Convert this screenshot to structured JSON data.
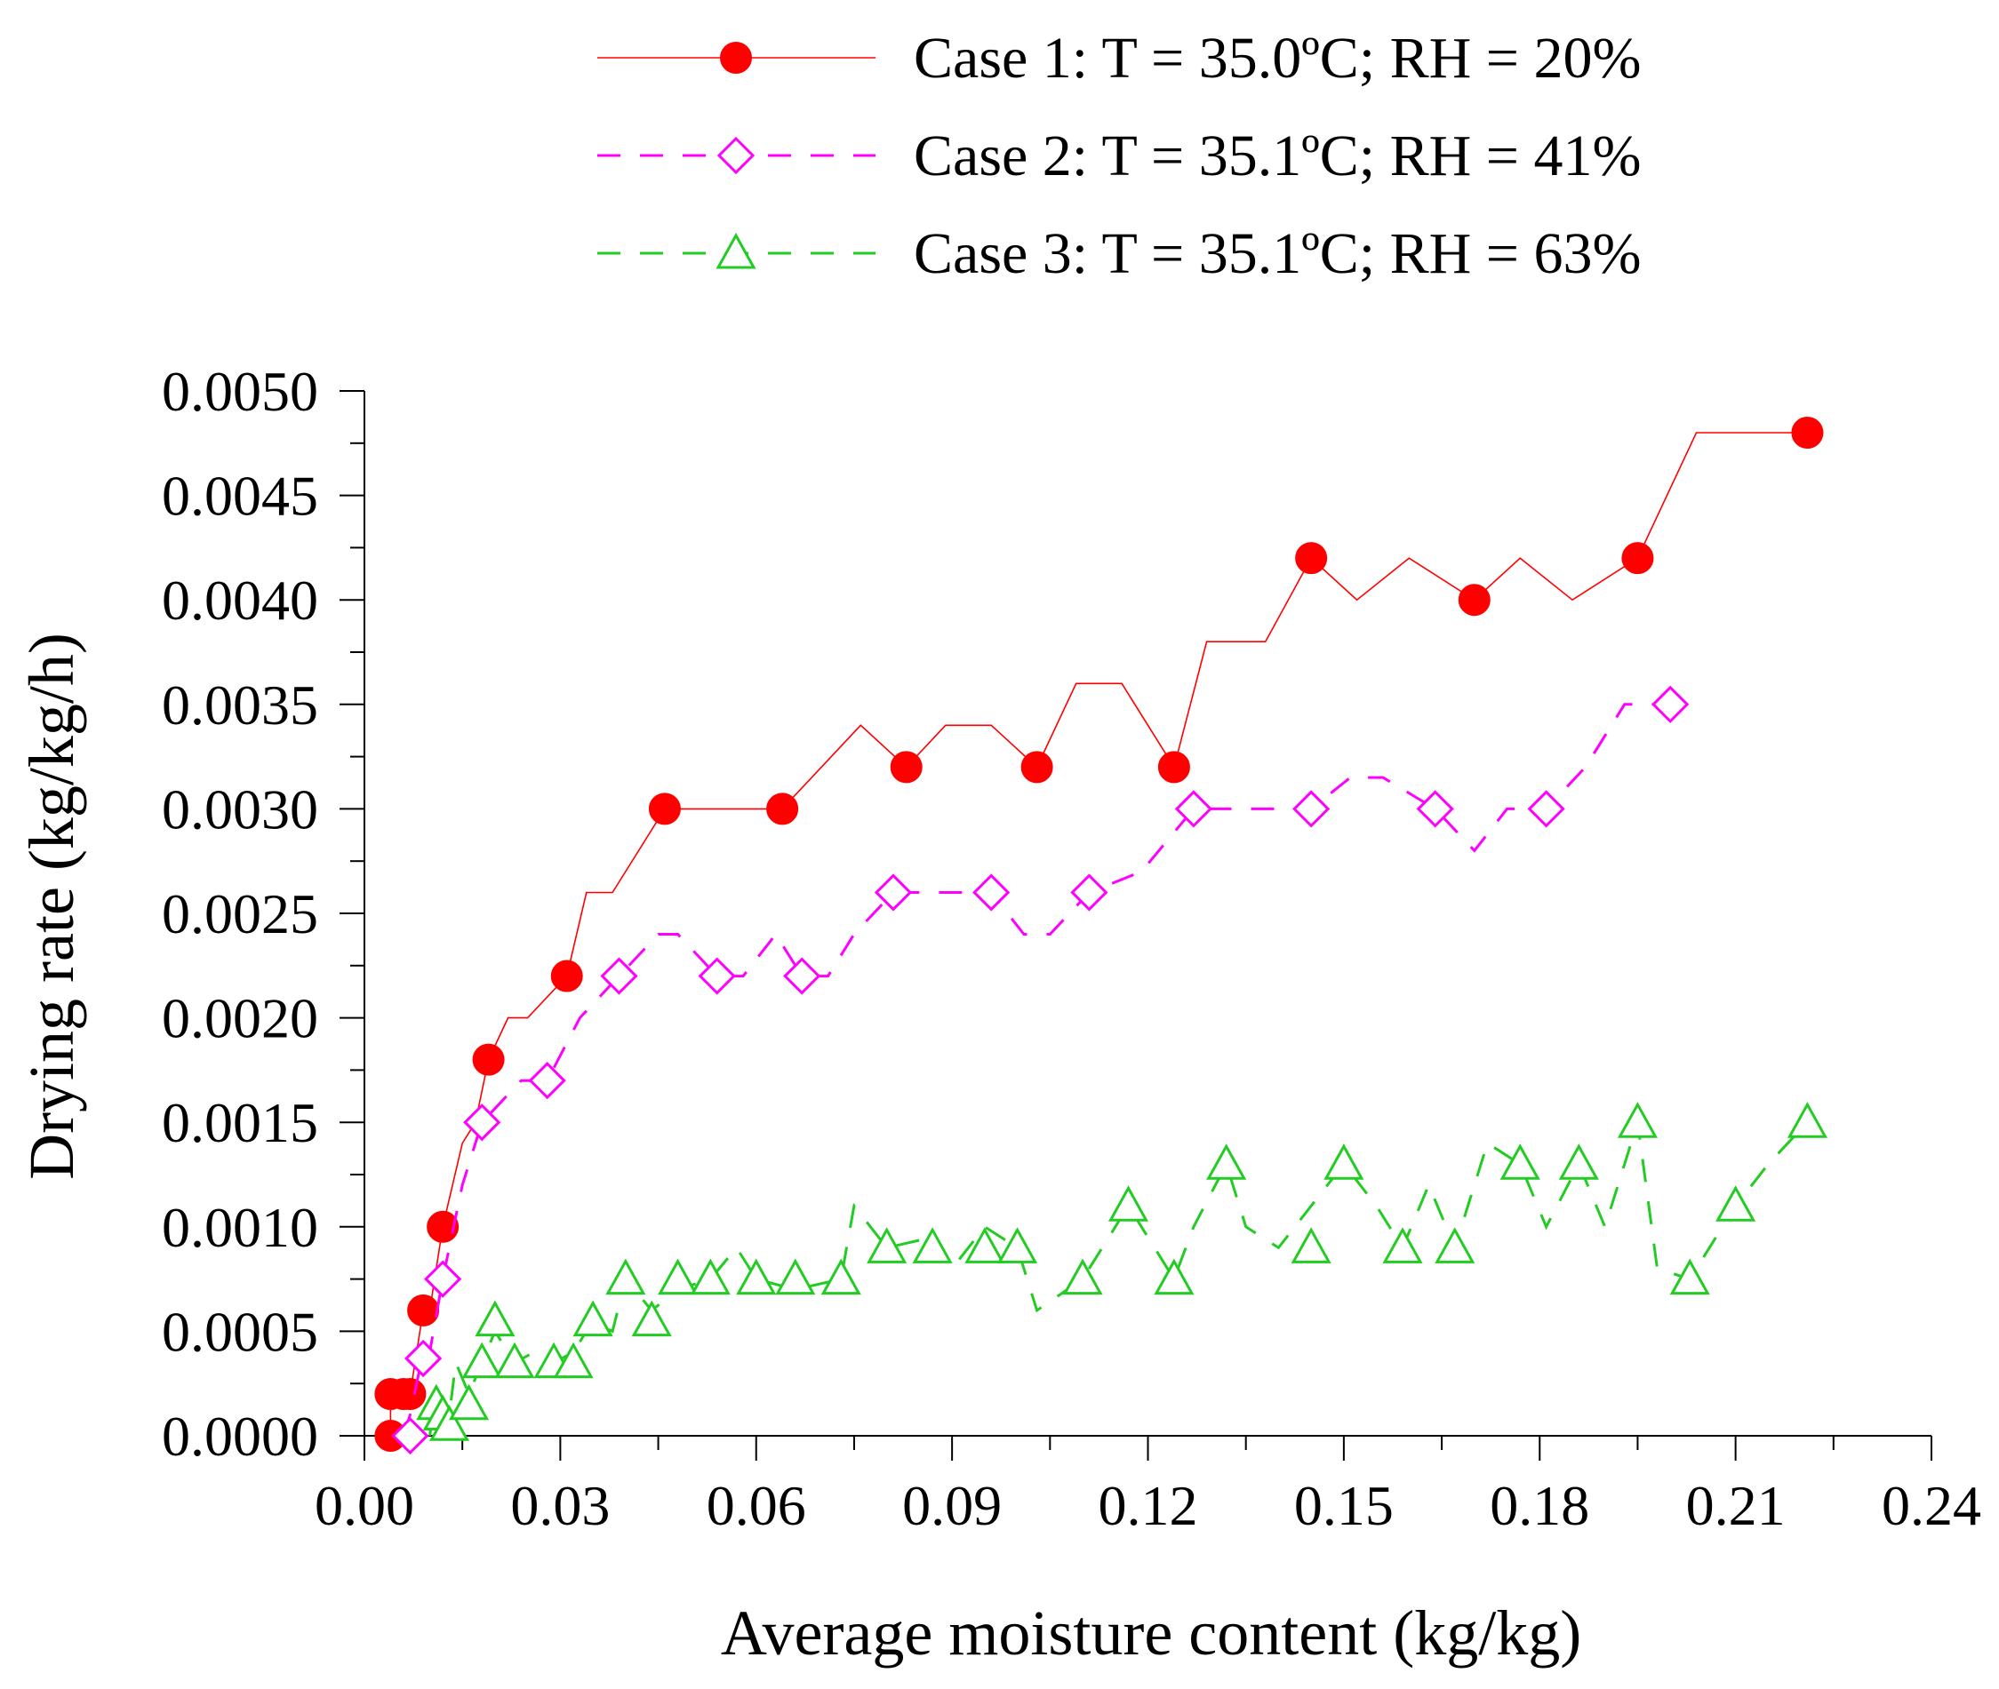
{
  "chart_data": {
    "type": "line",
    "title": "",
    "xlabel": "Average moisture content (kg/kg)",
    "ylabel": "Drying rate (kg/kg/h)",
    "xlim": [
      0.0,
      0.24
    ],
    "ylim": [
      0.0,
      0.005
    ],
    "x_ticks": [
      "0.00",
      "0.03",
      "0.06",
      "0.09",
      "0.12",
      "0.15",
      "0.18",
      "0.21",
      "0.24"
    ],
    "y_ticks": [
      "0.0000",
      "0.0005",
      "0.0010",
      "0.0015",
      "0.0020",
      "0.0025",
      "0.0030",
      "0.0035",
      "0.0040",
      "0.0045",
      "0.0050"
    ],
    "legend_position": "top-right (above plot)",
    "series": [
      {
        "name": "Case 1: T = 35.0ºC; RH = 20%",
        "color": "#ff0000",
        "marker": "filled-circle",
        "line": "solid",
        "points": [
          [
            0.004,
            0.0
          ],
          [
            0.004,
            0.0002
          ],
          [
            0.006,
            0.0002
          ],
          [
            0.007,
            0.0002
          ],
          [
            0.009,
            0.0006
          ],
          [
            0.01,
            0.0006
          ],
          [
            0.012,
            0.001
          ],
          [
            0.015,
            0.0014
          ],
          [
            0.017,
            0.0015
          ],
          [
            0.019,
            0.0018
          ],
          [
            0.022,
            0.002
          ],
          [
            0.025,
            0.002
          ],
          [
            0.031,
            0.0022
          ],
          [
            0.034,
            0.0026
          ],
          [
            0.038,
            0.0026
          ],
          [
            0.046,
            0.003
          ],
          [
            0.064,
            0.003
          ],
          [
            0.076,
            0.0034
          ],
          [
            0.083,
            0.0032
          ],
          [
            0.089,
            0.0034
          ],
          [
            0.096,
            0.0034
          ],
          [
            0.103,
            0.0032
          ],
          [
            0.109,
            0.0036
          ],
          [
            0.116,
            0.0036
          ],
          [
            0.124,
            0.0032
          ],
          [
            0.129,
            0.0038
          ],
          [
            0.138,
            0.0038
          ],
          [
            0.145,
            0.0042
          ],
          [
            0.152,
            0.004
          ],
          [
            0.16,
            0.0042
          ],
          [
            0.17,
            0.004
          ],
          [
            0.177,
            0.0042
          ],
          [
            0.185,
            0.004
          ],
          [
            0.195,
            0.0042
          ],
          [
            0.204,
            0.0048
          ],
          [
            0.221,
            0.0048
          ]
        ],
        "markers": [
          [
            0.004,
            0.0
          ],
          [
            0.004,
            0.0002
          ],
          [
            0.006,
            0.0002
          ],
          [
            0.007,
            0.0002
          ],
          [
            0.009,
            0.0006
          ],
          [
            0.012,
            0.001
          ],
          [
            0.019,
            0.0018
          ],
          [
            0.031,
            0.0022
          ],
          [
            0.046,
            0.003
          ],
          [
            0.064,
            0.003
          ],
          [
            0.083,
            0.0032
          ],
          [
            0.103,
            0.0032
          ],
          [
            0.124,
            0.0032
          ],
          [
            0.145,
            0.0042
          ],
          [
            0.17,
            0.004
          ],
          [
            0.195,
            0.0042
          ],
          [
            0.221,
            0.0048
          ]
        ]
      },
      {
        "name": "Case 2: T = 35.1ºC; RH = 41%",
        "color": "#ff00ff",
        "marker": "open-diamond",
        "line": "dashed",
        "points": [
          [
            0.006,
            0.0
          ],
          [
            0.007,
            0.0001
          ],
          [
            0.009,
            0.0004
          ],
          [
            0.01,
            0.0004
          ],
          [
            0.012,
            0.00075
          ],
          [
            0.015,
            0.0012
          ],
          [
            0.018,
            0.0015
          ],
          [
            0.021,
            0.0016
          ],
          [
            0.024,
            0.0017
          ],
          [
            0.028,
            0.0017
          ],
          [
            0.033,
            0.002
          ],
          [
            0.039,
            0.0022
          ],
          [
            0.045,
            0.0024
          ],
          [
            0.048,
            0.0024
          ],
          [
            0.054,
            0.0022
          ],
          [
            0.058,
            0.0022
          ],
          [
            0.063,
            0.0024
          ],
          [
            0.067,
            0.0022
          ],
          [
            0.071,
            0.0022
          ],
          [
            0.075,
            0.0024
          ],
          [
            0.081,
            0.0026
          ],
          [
            0.096,
            0.0026
          ],
          [
            0.101,
            0.0024
          ],
          [
            0.105,
            0.0024
          ],
          [
            0.111,
            0.0026
          ],
          [
            0.119,
            0.0027
          ],
          [
            0.127,
            0.003
          ],
          [
            0.145,
            0.003
          ],
          [
            0.151,
            0.00315
          ],
          [
            0.156,
            0.00315
          ],
          [
            0.164,
            0.003
          ],
          [
            0.17,
            0.0028
          ],
          [
            0.175,
            0.003
          ],
          [
            0.181,
            0.003
          ],
          [
            0.187,
            0.0032
          ],
          [
            0.193,
            0.0035
          ],
          [
            0.2,
            0.0035
          ]
        ],
        "markers": [
          [
            0.007,
            0.0
          ],
          [
            0.009,
            0.00037
          ],
          [
            0.012,
            0.00075
          ],
          [
            0.018,
            0.0015
          ],
          [
            0.028,
            0.0017
          ],
          [
            0.039,
            0.0022
          ],
          [
            0.054,
            0.0022
          ],
          [
            0.067,
            0.0022
          ],
          [
            0.081,
            0.0026
          ],
          [
            0.096,
            0.0026
          ],
          [
            0.111,
            0.0026
          ],
          [
            0.127,
            0.003
          ],
          [
            0.145,
            0.003
          ],
          [
            0.164,
            0.003
          ],
          [
            0.181,
            0.003
          ],
          [
            0.2,
            0.0035
          ]
        ]
      },
      {
        "name": "Case 3: T = 35.1ºC; RH = 63%",
        "color": "#22cc22",
        "marker": "open-triangle",
        "line": "dashed",
        "points": [
          [
            0.01,
            0.0
          ],
          [
            0.011,
            0.0002
          ],
          [
            0.012,
            0.0001
          ],
          [
            0.013,
            0.0001
          ],
          [
            0.014,
            0.00035
          ],
          [
            0.016,
            0.0002
          ],
          [
            0.018,
            0.00035
          ],
          [
            0.02,
            0.0005
          ],
          [
            0.023,
            0.00035
          ],
          [
            0.026,
            0.0004
          ],
          [
            0.029,
            0.00035
          ],
          [
            0.032,
            0.0004
          ],
          [
            0.035,
            0.00055
          ],
          [
            0.038,
            0.0005
          ],
          [
            0.04,
            0.00075
          ],
          [
            0.044,
            0.0006
          ],
          [
            0.048,
            0.0007
          ],
          [
            0.053,
            0.00075
          ],
          [
            0.057,
            0.0009
          ],
          [
            0.06,
            0.00075
          ],
          [
            0.066,
            0.0007
          ],
          [
            0.073,
            0.00075
          ],
          [
            0.075,
            0.0011
          ],
          [
            0.08,
            0.0009
          ],
          [
            0.087,
            0.00095
          ],
          [
            0.09,
            0.0008
          ],
          [
            0.095,
            0.001
          ],
          [
            0.1,
            0.0009
          ],
          [
            0.103,
            0.0006
          ],
          [
            0.11,
            0.00075
          ],
          [
            0.113,
            0.0009
          ],
          [
            0.117,
            0.0011
          ],
          [
            0.124,
            0.00075
          ],
          [
            0.127,
            0.001
          ],
          [
            0.132,
            0.0013
          ],
          [
            0.135,
            0.001
          ],
          [
            0.14,
            0.0009
          ],
          [
            0.145,
            0.0011
          ],
          [
            0.15,
            0.0013
          ],
          [
            0.155,
            0.0011
          ],
          [
            0.159,
            0.0009
          ],
          [
            0.163,
            0.0012
          ],
          [
            0.167,
            0.0009
          ],
          [
            0.172,
            0.0014
          ],
          [
            0.177,
            0.0013
          ],
          [
            0.181,
            0.001
          ],
          [
            0.186,
            0.0013
          ],
          [
            0.19,
            0.001
          ],
          [
            0.195,
            0.0015
          ],
          [
            0.198,
            0.0008
          ],
          [
            0.203,
            0.00075
          ],
          [
            0.206,
            0.0009
          ],
          [
            0.21,
            0.0011
          ],
          [
            0.215,
            0.0013
          ],
          [
            0.221,
            0.0015
          ]
        ],
        "markers": [
          [
            0.011,
            0.00015
          ],
          [
            0.012,
            0.0001
          ],
          [
            0.013,
            5e-05
          ],
          [
            0.016,
            0.00015
          ],
          [
            0.018,
            0.00035
          ],
          [
            0.02,
            0.00055
          ],
          [
            0.023,
            0.00035
          ],
          [
            0.029,
            0.00035
          ],
          [
            0.032,
            0.00035
          ],
          [
            0.035,
            0.00055
          ],
          [
            0.04,
            0.00075
          ],
          [
            0.044,
            0.00055
          ],
          [
            0.048,
            0.00075
          ],
          [
            0.053,
            0.00075
          ],
          [
            0.06,
            0.00075
          ],
          [
            0.066,
            0.00075
          ],
          [
            0.073,
            0.00075
          ],
          [
            0.08,
            0.0009
          ],
          [
            0.087,
            0.0009
          ],
          [
            0.095,
            0.0009
          ],
          [
            0.1,
            0.0009
          ],
          [
            0.11,
            0.00075
          ],
          [
            0.117,
            0.0011
          ],
          [
            0.124,
            0.00075
          ],
          [
            0.132,
            0.0013
          ],
          [
            0.145,
            0.0009
          ],
          [
            0.15,
            0.0013
          ],
          [
            0.159,
            0.0009
          ],
          [
            0.167,
            0.0009
          ],
          [
            0.177,
            0.0013
          ],
          [
            0.186,
            0.0013
          ],
          [
            0.195,
            0.0015
          ],
          [
            0.203,
            0.00075
          ],
          [
            0.21,
            0.0011
          ],
          [
            0.221,
            0.0015
          ]
        ]
      }
    ]
  }
}
